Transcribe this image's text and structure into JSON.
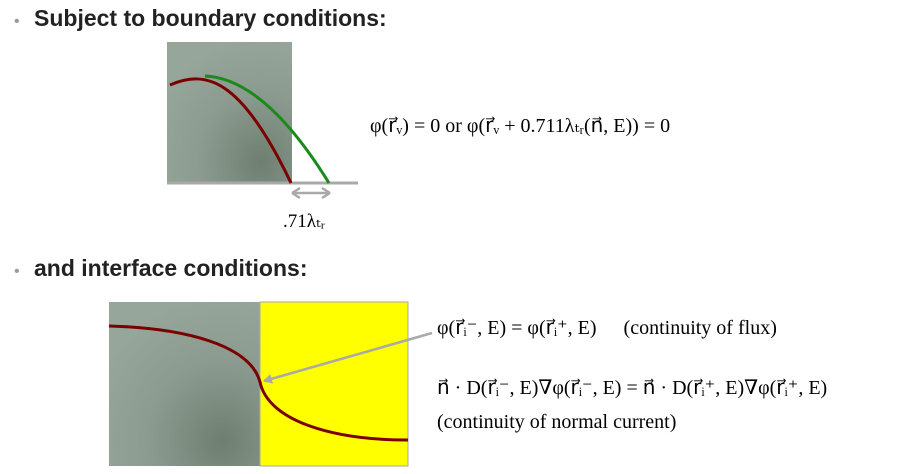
{
  "sections": {
    "boundary_heading": "Subject to boundary conditions:",
    "interface_heading": "and interface conditions:"
  },
  "boundary": {
    "equation": "φ(r⃗ᵥ) = 0 or φ(r⃗ᵥ + 0.711λₜᵣ(n⃗, E)) = 0",
    "extrapolation_label": ".71λₜᵣ"
  },
  "interface": {
    "flux_equation": "φ(r⃗ᵢ⁻, E) = φ(r⃗ᵢ⁺, E)",
    "flux_note": "(continuity of flux)",
    "current_equation": "n⃗ · D(r⃗ᵢ⁻, E)∇φ(r⃗ᵢ⁻, E) = n⃗ · D(r⃗ᵢ⁺, E)∇φ(r⃗ᵢ⁺, E)",
    "current_note": "(continuity of normal current)"
  },
  "colors": {
    "medium_gray": "#8f9e92",
    "medium_dark": "#6e7f72",
    "yellow_region": "#ffff00",
    "flux_curve": "#7a0000",
    "extrapolated_curve": "#1a8a1a",
    "arrow_gray": "#a9a9a9"
  }
}
